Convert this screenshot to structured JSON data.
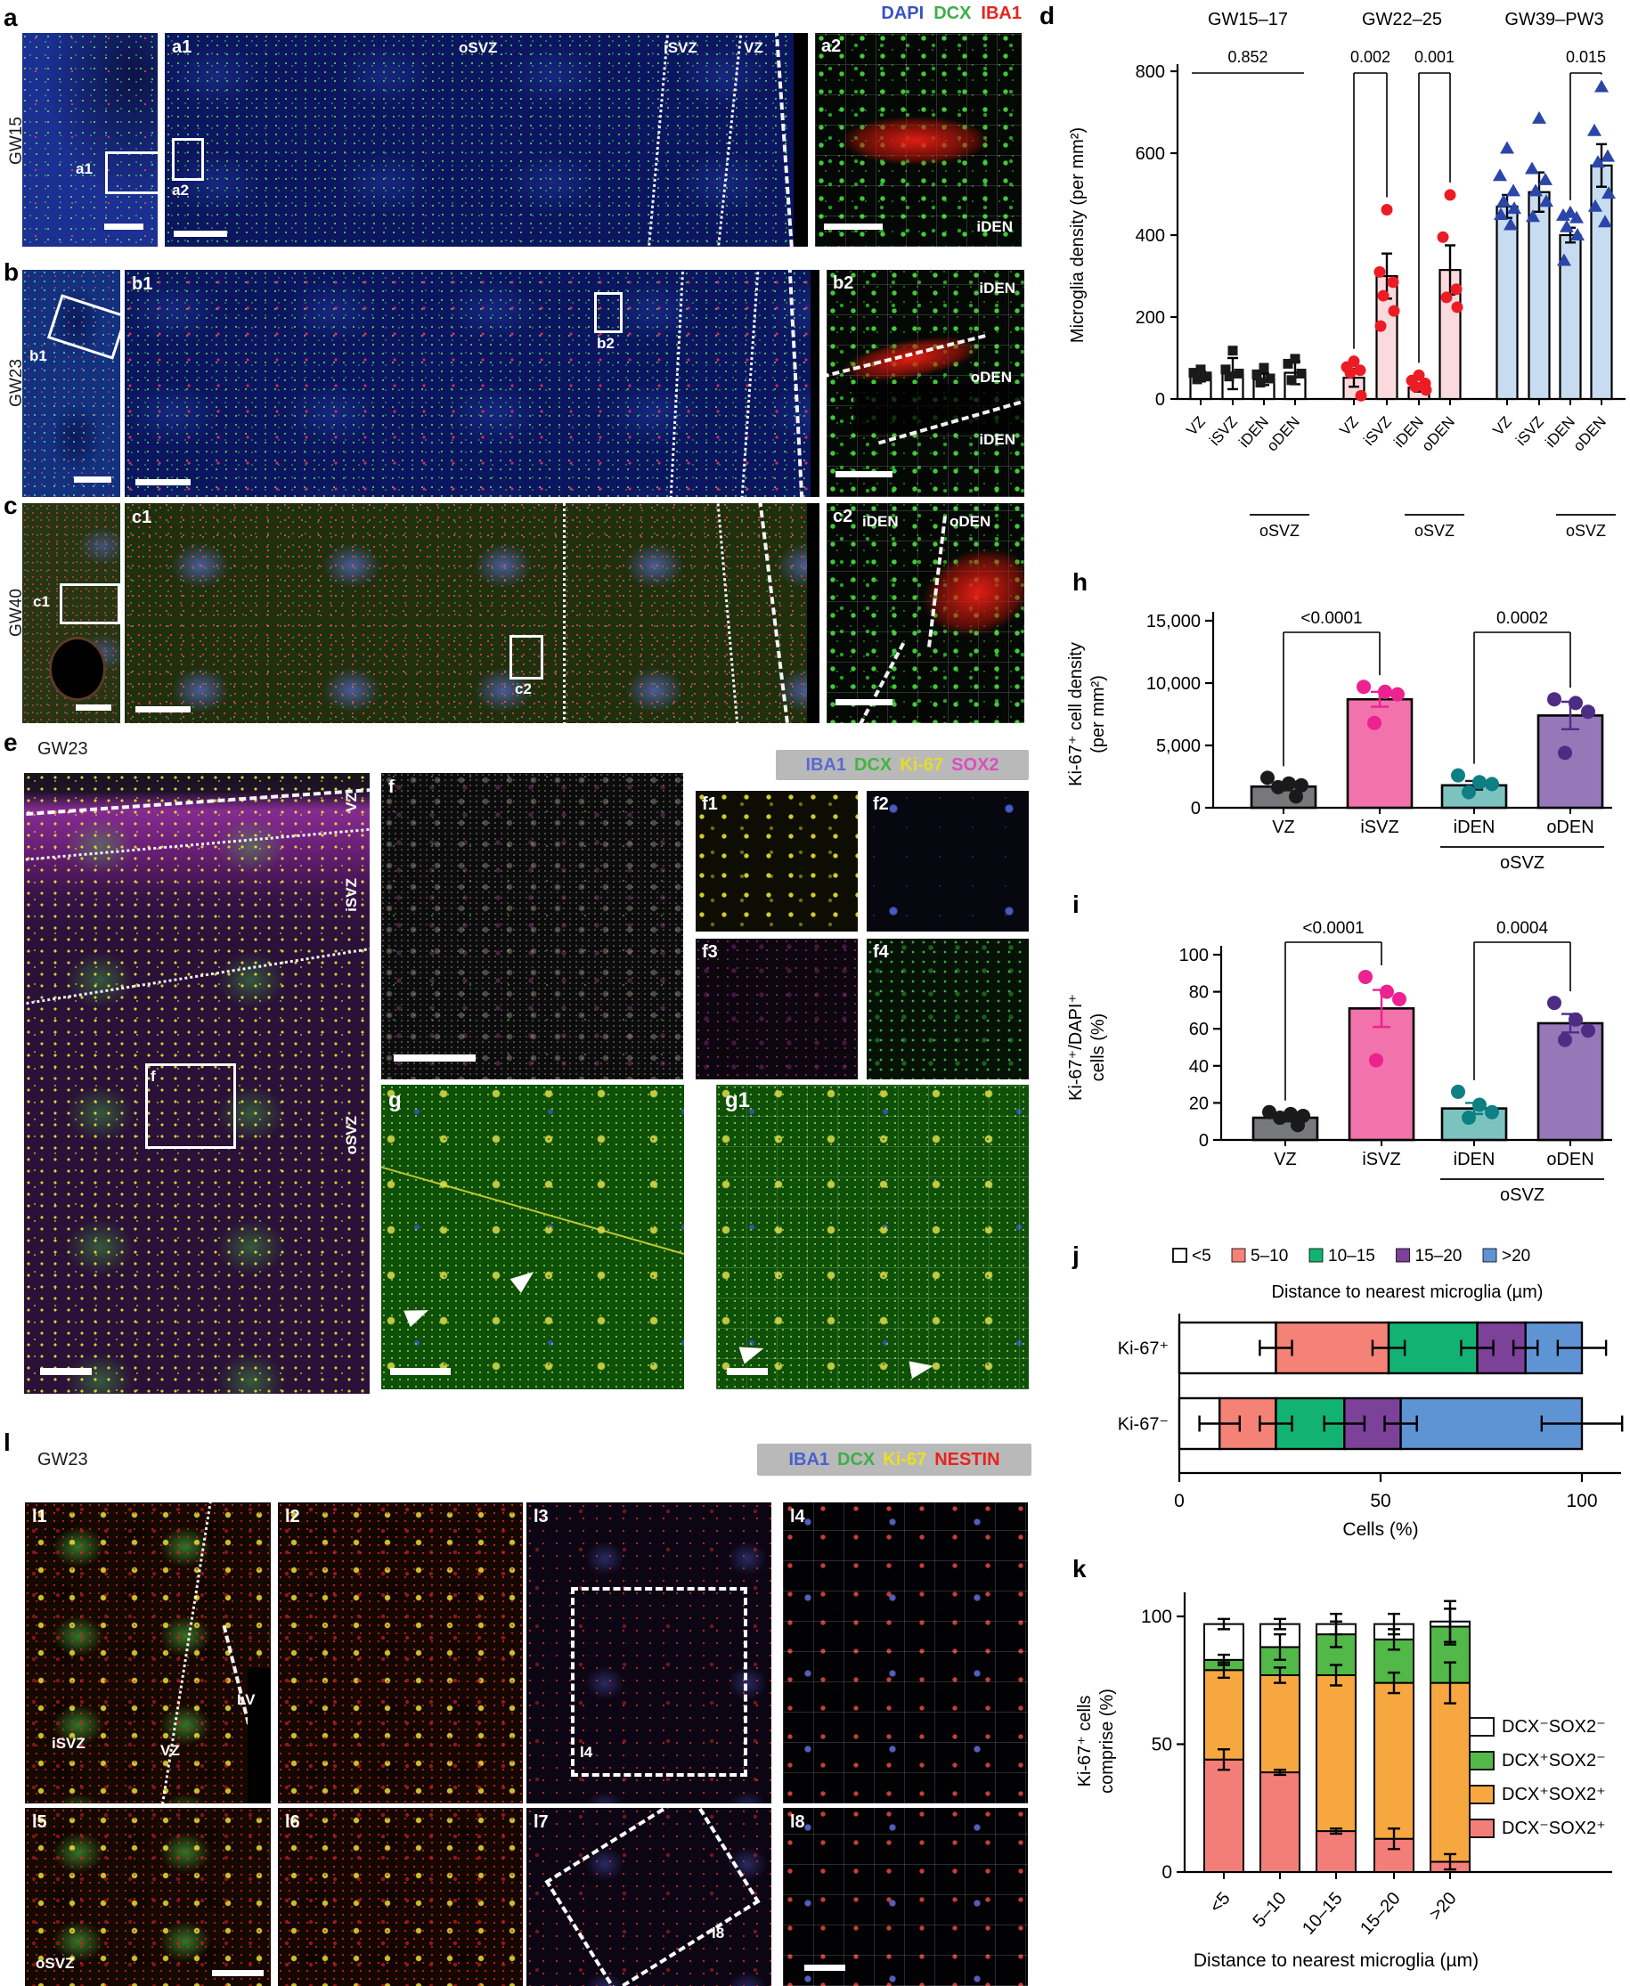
{
  "legends": {
    "top": {
      "items": [
        {
          "label": "DAPI",
          "color": "#3a50c8"
        },
        {
          "label": "DCX",
          "color": "#3dae47"
        },
        {
          "label": "IBA1",
          "color": "#e8231d"
        }
      ]
    },
    "ef": {
      "bg": "#b9b9b9",
      "items": [
        {
          "label": "IBA1",
          "color": "#5a6ad0"
        },
        {
          "label": "DCX",
          "color": "#45b53e"
        },
        {
          "label": "Ki-67",
          "color": "#e3de28"
        },
        {
          "label": "SOX2",
          "color": "#d94fc0"
        }
      ]
    },
    "l": {
      "bg": "#b9b9b9",
      "items": [
        {
          "label": "IBA1",
          "color": "#4a5fd0"
        },
        {
          "label": "DCX",
          "color": "#3fae49"
        },
        {
          "label": "Ki-67",
          "color": "#ecdf1f"
        },
        {
          "label": "NESTIN",
          "color": "#e8231d"
        }
      ]
    }
  },
  "panels": {
    "a": {
      "letter": "a",
      "stage": "GW15",
      "thumb_box_label": "a1",
      "main_label": "a1",
      "osvz": "oSVZ",
      "isvz": "iSVZ",
      "vz": "VZ",
      "inset_box_label": "a2",
      "inset_label": "a2",
      "inset_region": "iDEN"
    },
    "b": {
      "letter": "b",
      "stage": "GW23",
      "thumb_box_label": "b1",
      "main_label": "b1",
      "box_label": "b2",
      "inset_label": "b2",
      "region1": "iDEN",
      "region2": "oDEN",
      "region3": "iDEN"
    },
    "c": {
      "letter": "c",
      "stage": "GW40",
      "thumb_box_label": "c1",
      "main_label": "c1",
      "box_label": "c2",
      "inset_label": "c2",
      "region1": "iDEN",
      "region2": "oDEN"
    },
    "e": {
      "letter": "e",
      "stage": "GW23",
      "vz": "VZ",
      "isvz": "iSVZ",
      "osvz": "oSVZ",
      "box_label": "f"
    },
    "f": {
      "main_label": "f",
      "subs": [
        "f1",
        "f2",
        "f3",
        "f4"
      ]
    },
    "g": {
      "label": "g",
      "sub_label": "g1"
    },
    "l": {
      "letter": "l",
      "stage": "GW23",
      "tiles": [
        "l1",
        "l2",
        "l3",
        "l4",
        "l5",
        "l6",
        "l7",
        "l8"
      ],
      "isvz": "iSVZ",
      "vz": "VZ",
      "lv": "LV",
      "osvz": "oSVZ",
      "box_l4": "l4",
      "box_l8": "l8"
    }
  },
  "chart_data": [
    {
      "id": "d",
      "panel_letter": "d",
      "type": "grouped_bar_scatter",
      "ylabel": "Microglia density (per mm²)",
      "ylim": [
        0,
        800
      ],
      "yticks": [
        0,
        200,
        400,
        600,
        800
      ],
      "categories": [
        "VZ",
        "iSVZ",
        "iDEN",
        "oDEN"
      ],
      "region_footer": "oSVZ",
      "groups": [
        {
          "name": "GW15–17",
          "bar_fill": "#ffffff",
          "point_color": "#1a1a1a",
          "marker": "square",
          "values": [
            55,
            62,
            48,
            64
          ],
          "errors": [
            12,
            38,
            14,
            28
          ],
          "points": [
            [
              72,
              64,
              55,
              48
            ],
            [
              118,
              72,
              62,
              55
            ],
            [
              76,
              60,
              50,
              40
            ],
            [
              98,
              86,
              62,
              46
            ]
          ]
        },
        {
          "name": "GW22–25",
          "bar_fill": "#fbdadd",
          "point_color": "#ec1c24",
          "marker": "circle",
          "values": [
            52,
            300,
            28,
            315
          ],
          "errors": [
            22,
            55,
            10,
            60
          ],
          "points": [
            [
              92,
              78,
              70,
              64,
              8
            ],
            [
              462,
              310,
              285,
              252,
              215,
              178
            ],
            [
              58,
              45,
              38,
              30,
              22
            ],
            [
              498,
              395,
              268,
              248,
              224
            ]
          ]
        },
        {
          "name": "GW39–PW3",
          "bar_fill": "#c7dcf0",
          "point_color": "#2b46a8",
          "marker": "triangle",
          "values": [
            470,
            505,
            400,
            570
          ],
          "errors": [
            28,
            48,
            18,
            52
          ],
          "points": [
            [
              612,
              545,
              508,
              482,
              465,
              450,
              425
            ],
            [
              685,
              562,
              535,
              508,
              482,
              445
            ],
            [
              455,
              448,
              442,
              420,
              400,
              338
            ],
            [
              762,
              655,
              592,
              578,
              502,
              470,
              432
            ]
          ]
        }
      ],
      "sig": [
        {
          "label": "0.852",
          "group": 0,
          "from": 0,
          "to": 3,
          "drops": false
        },
        {
          "label": "0.002",
          "group": 1,
          "from": 0,
          "to": 1,
          "drops": true
        },
        {
          "label": "0.001",
          "group": 1,
          "from": 2,
          "to": 3,
          "drops": true
        },
        {
          "label": "0.015",
          "group": 2,
          "from": 2,
          "to": 3,
          "drops": true
        }
      ]
    },
    {
      "id": "h",
      "panel_letter": "h",
      "type": "bar_scatter",
      "ylabel_lines": [
        "Ki-67⁺ cell density",
        "(per mm²)"
      ],
      "ylim": [
        0,
        15000
      ],
      "yticks": [
        0,
        5000,
        10000,
        15000
      ],
      "ytick_labels": [
        "0",
        "5,000",
        "10,000",
        "15,000"
      ],
      "categories": [
        "VZ",
        "iSVZ",
        "iDEN",
        "oDEN"
      ],
      "region_footer": "oSVZ",
      "bars": [
        {
          "fill": "#77787b",
          "point": "#1a1a1a",
          "err": "#1a1a1a",
          "value": 1700,
          "error": 300,
          "points": [
            2400,
            1950,
            1800,
            1650,
            900
          ]
        },
        {
          "fill": "#f272ab",
          "point": "#ec2290",
          "err": "#ec2290",
          "value": 8700,
          "error": 600,
          "points": [
            9700,
            9300,
            9100,
            6800
          ]
        },
        {
          "fill": "#7cc3c0",
          "point": "#0e8084",
          "err": "#1a1a1a",
          "value": 1800,
          "error": 350,
          "points": [
            2600,
            2050,
            1900,
            1250
          ]
        },
        {
          "fill": "#9678b9",
          "point": "#4d2d84",
          "err": "#4d2d84",
          "value": 7400,
          "error": 1100,
          "points": [
            8700,
            8400,
            7700,
            4400
          ]
        }
      ],
      "sig": [
        {
          "label": "<0.0001",
          "from": 0,
          "to": 1
        },
        {
          "label": "0.0002",
          "from": 2,
          "to": 3
        }
      ]
    },
    {
      "id": "i",
      "panel_letter": "i",
      "type": "bar_scatter",
      "ylabel_lines": [
        "Ki-67⁺/DAPI⁺",
        "cells (%)"
      ],
      "ylim": [
        0,
        100
      ],
      "yticks": [
        0,
        20,
        40,
        60,
        80,
        100
      ],
      "ytick_labels": [
        "0",
        "20",
        "40",
        "60",
        "80",
        "100"
      ],
      "categories": [
        "VZ",
        "iSVZ",
        "iDEN",
        "oDEN"
      ],
      "region_footer": "oSVZ",
      "bars": [
        {
          "fill": "#77787b",
          "point": "#1a1a1a",
          "err": "#1a1a1a",
          "value": 12,
          "error": 2,
          "points": [
            15,
            14,
            13,
            12,
            8
          ]
        },
        {
          "fill": "#f272ab",
          "point": "#ec2290",
          "err": "#ec2290",
          "value": 71,
          "error": 10,
          "points": [
            88,
            80,
            76,
            43
          ]
        },
        {
          "fill": "#7cc3c0",
          "point": "#0e8084",
          "err": "#0e8084",
          "value": 17,
          "error": 3,
          "points": [
            26,
            19,
            15,
            12
          ]
        },
        {
          "fill": "#9678b9",
          "point": "#4d2d84",
          "err": "#4d2d84",
          "value": 63,
          "error": 5,
          "points": [
            74,
            65,
            59,
            54
          ]
        }
      ],
      "sig": [
        {
          "label": "<0.0001",
          "from": 0,
          "to": 1
        },
        {
          "label": "0.0004",
          "from": 2,
          "to": 3
        }
      ]
    },
    {
      "id": "j",
      "panel_letter": "j",
      "type": "hstack",
      "legend_title": "Distance to nearest microglia (µm)",
      "bins": [
        {
          "label": "<5",
          "color": "#ffffff"
        },
        {
          "label": "5–10",
          "color": "#f48276"
        },
        {
          "label": "10–15",
          "color": "#12b273"
        },
        {
          "label": "15–20",
          "color": "#7c4199"
        },
        {
          "label": ">20",
          "color": "#5f94d4"
        }
      ],
      "rows": [
        {
          "label": "Ki-67⁺",
          "values": [
            24,
            28,
            22,
            12,
            14
          ],
          "errors": [
            4,
            4,
            4,
            3,
            6
          ]
        },
        {
          "label": "Ki-67⁻",
          "values": [
            10,
            14,
            17,
            14,
            45
          ],
          "errors": [
            5,
            4,
            5,
            4,
            10
          ]
        }
      ],
      "xlabel": "Cells (%)",
      "xticks": [
        0,
        50,
        100
      ],
      "xlim": [
        0,
        100
      ]
    },
    {
      "id": "k",
      "panel_letter": "k",
      "type": "vstack",
      "ylabel_lines": [
        "Ki-67⁺ cells",
        "comprise (%)"
      ],
      "xlabel": "Distance to nearest microglia (µm)",
      "categories": [
        "<5",
        "5–10",
        "10–15",
        "15–20",
        ">20"
      ],
      "yticks": [
        0,
        50,
        100
      ],
      "ylim": [
        0,
        100
      ],
      "series": [
        {
          "name": "DCX⁻SOX2⁺",
          "color": "#f37e79",
          "values": [
            44,
            39,
            16,
            13,
            4
          ],
          "errors": [
            4,
            1,
            1,
            4,
            3
          ]
        },
        {
          "name": "DCX⁺SOX2⁺",
          "color": "#f7a73f",
          "values": [
            35,
            38,
            61,
            61,
            70
          ],
          "errors": [
            3,
            3,
            4,
            4,
            8
          ]
        },
        {
          "name": "DCX⁺SOX2⁻",
          "color": "#52b848",
          "values": [
            4,
            11,
            16,
            17,
            22
          ],
          "errors": [
            2,
            5,
            5,
            4,
            7
          ]
        },
        {
          "name": "DCX⁻SOX2⁻",
          "color": "#ffffff",
          "values": [
            14,
            9,
            4,
            6,
            2
          ],
          "errors": [
            2,
            2,
            4,
            4,
            8
          ]
        }
      ],
      "legend_order_top_down": [
        "DCX⁻SOX2⁻",
        "DCX⁺SOX2⁻",
        "DCX⁺SOX2⁺",
        "DCX⁻SOX2⁺"
      ]
    }
  ]
}
